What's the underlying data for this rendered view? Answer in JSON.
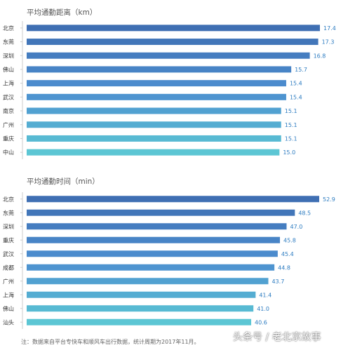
{
  "chart_data": [
    {
      "type": "bar",
      "orientation": "horizontal",
      "title": "平均通勤距离（km）",
      "categories": [
        "北京",
        "东莞",
        "深圳",
        "佛山",
        "上海",
        "武汉",
        "南京",
        "广州",
        "重庆",
        "中山"
      ],
      "values": [
        17.4,
        17.3,
        16.8,
        15.7,
        15.4,
        15.4,
        15.1,
        15.1,
        15.1,
        15.0
      ],
      "value_labels": [
        "17.4",
        "17.3",
        "16.8",
        "15.7",
        "15.4",
        "15.4",
        "15.1",
        "15.1",
        "15.1",
        "15.0"
      ],
      "grid": false,
      "legend": "none"
    },
    {
      "type": "bar",
      "orientation": "horizontal",
      "title": "平均通勤时间（min）",
      "categories": [
        "北京",
        "东莞",
        "深圳",
        "重庆",
        "武汉",
        "成都",
        "广州",
        "上海",
        "佛山",
        "汕头"
      ],
      "values": [
        52.9,
        48.5,
        47.0,
        45.8,
        45.4,
        44.8,
        43.7,
        41.4,
        41.0,
        40.6
      ],
      "value_labels": [
        "52.9",
        "48.5",
        "47.0",
        "45.8",
        "45.4",
        "44.8",
        "43.7",
        "41.4",
        "41.0",
        "40.6"
      ],
      "grid": false,
      "legend": "none"
    }
  ],
  "footnote": "注：数据来自平台专快车和顺风车出行数据，统计周期为2017年11月。",
  "watermark": "头条号 / 老北京故事",
  "colors": {
    "bar_dark": "#3f6fb3",
    "bar_mid": "#4c8ed0",
    "bar_light": "#5cc6d4",
    "value_label": "#2d7cc1",
    "axis": "#cccccc"
  }
}
